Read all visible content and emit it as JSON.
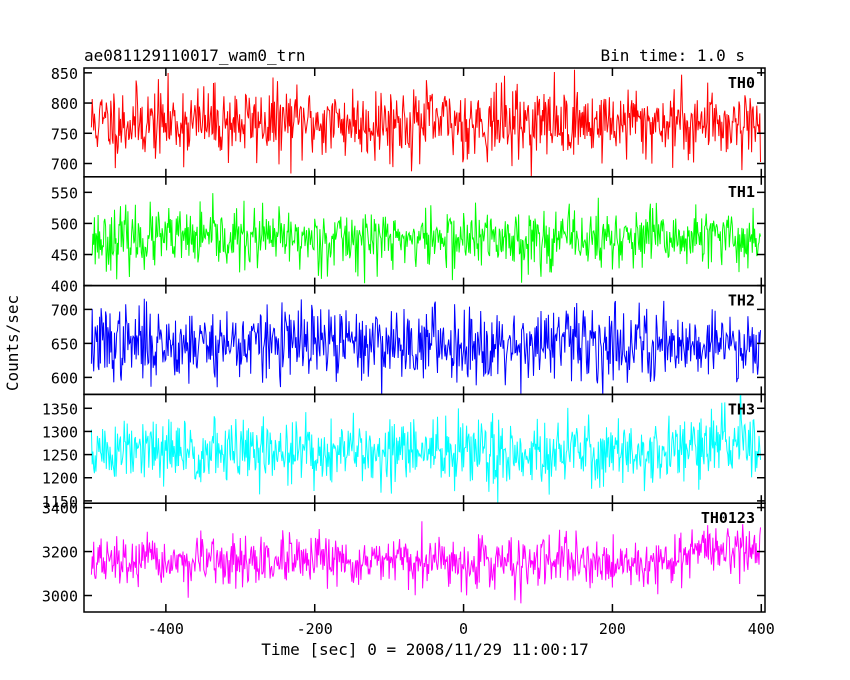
{
  "chart_data": {
    "type": "line",
    "title": "ae081129110017_wam0_trn",
    "subtitle": "Bin time: 1.0 s",
    "xlabel": "Time [sec] 0 = 2008/11/29 11:00:17",
    "ylabel": "Counts/sec",
    "xlim": [
      -510,
      405
    ],
    "x_ticks": [
      -400,
      -200,
      0,
      200,
      400
    ],
    "x_range": [
      -500,
      399
    ],
    "x_step": 1,
    "grid": false,
    "panels": [
      {
        "name": "TH0",
        "color": "#ff0000",
        "ylim": [
          678,
          858
        ],
        "y_ticks": [
          700,
          750,
          800,
          850
        ],
        "profile": {
          "x": [
            -500,
            399
          ],
          "mean": [
            768,
            768
          ]
        },
        "noise_sigma": 30,
        "seed": 11
      },
      {
        "name": "TH1",
        "color": "#00ff00",
        "ylim": [
          400,
          575
        ],
        "y_ticks": [
          400,
          450,
          500,
          550
        ],
        "profile": {
          "x": [
            -500,
            399
          ],
          "mean": [
            475,
            475
          ]
        },
        "noise_sigma": 24,
        "seed": 23
      },
      {
        "name": "TH2",
        "color": "#0000ff",
        "ylim": [
          575,
          735
        ],
        "y_ticks": [
          600,
          650,
          700
        ],
        "profile": {
          "x": [
            -500,
            399
          ],
          "mean": [
            650,
            650
          ]
        },
        "noise_sigma": 27,
        "seed": 37
      },
      {
        "name": "TH3",
        "color": "#00ffff",
        "ylim": [
          1145,
          1380
        ],
        "y_ticks": [
          1150,
          1200,
          1250,
          1300,
          1350
        ],
        "profile": {
          "x": [
            -500,
            250,
            399
          ],
          "mean": [
            1255,
            1255,
            1280
          ]
        },
        "noise_sigma": 36,
        "seed": 51
      },
      {
        "name": "TH0123",
        "color": "#ff00ff",
        "ylim": [
          2925,
          3420
        ],
        "y_ticks": [
          3000,
          3200,
          3400
        ],
        "profile": {
          "x": [
            -500,
            280,
            310,
            399
          ],
          "mean": [
            3150,
            3150,
            3210,
            3210
          ]
        },
        "noise_sigma": 55,
        "seed": 67
      }
    ]
  }
}
